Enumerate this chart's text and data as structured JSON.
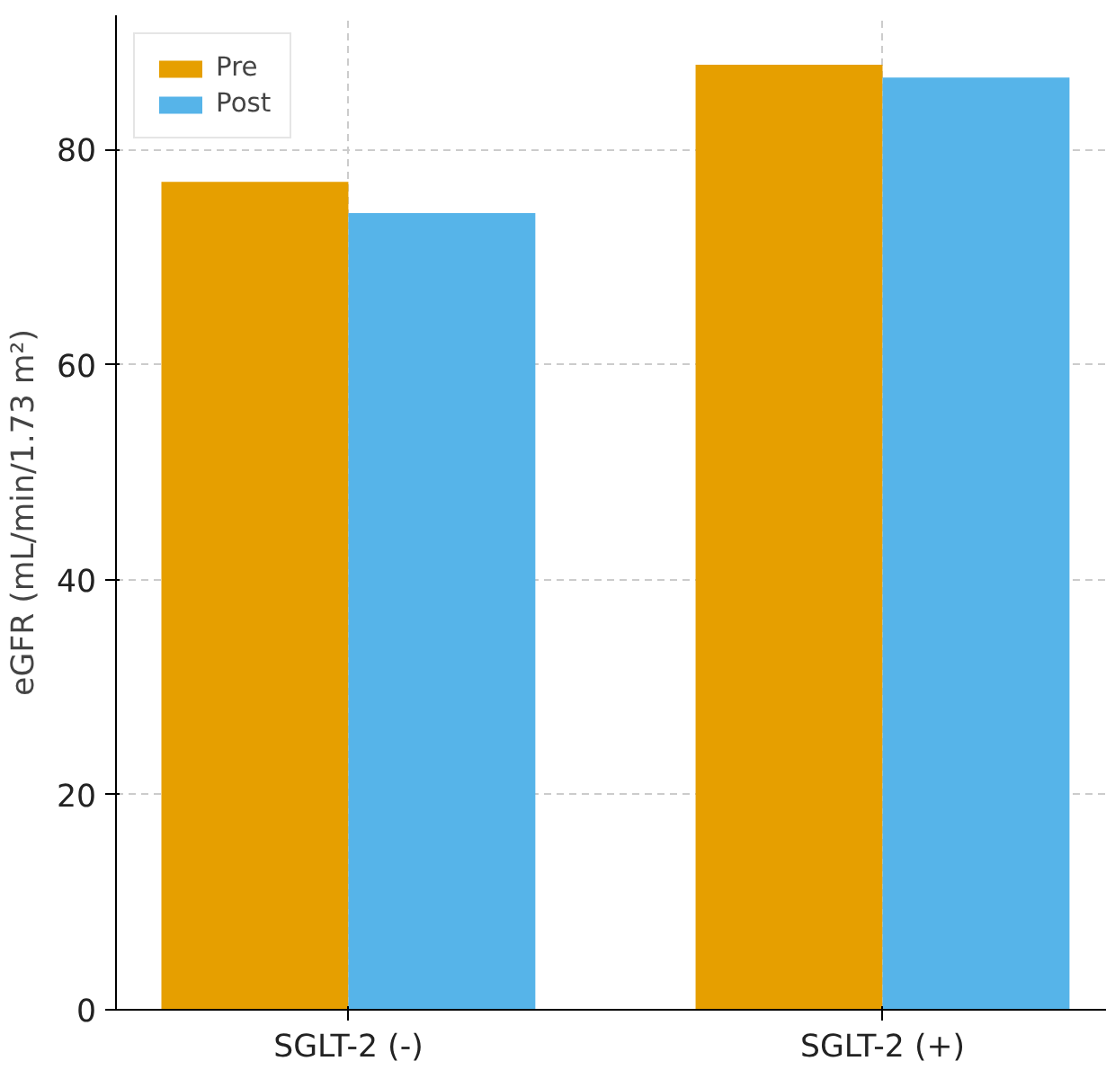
{
  "chart_data": {
    "type": "bar",
    "ylabel": "eGFR (mL/min/1.73 m²)",
    "categories": [
      "SGLT-2 (-)",
      "SGLT-2 (+)"
    ],
    "series": [
      {
        "name": "Pre",
        "color": "#e69f00",
        "values": [
          77.0,
          87.9
        ]
      },
      {
        "name": "Post",
        "color": "#56b4e9",
        "values": [
          74.1,
          86.7
        ]
      }
    ],
    "ylim": [
      0,
      92.5
    ],
    "yticks": [
      0,
      20,
      40,
      60,
      80
    ],
    "grid": true,
    "legend": "top left"
  }
}
